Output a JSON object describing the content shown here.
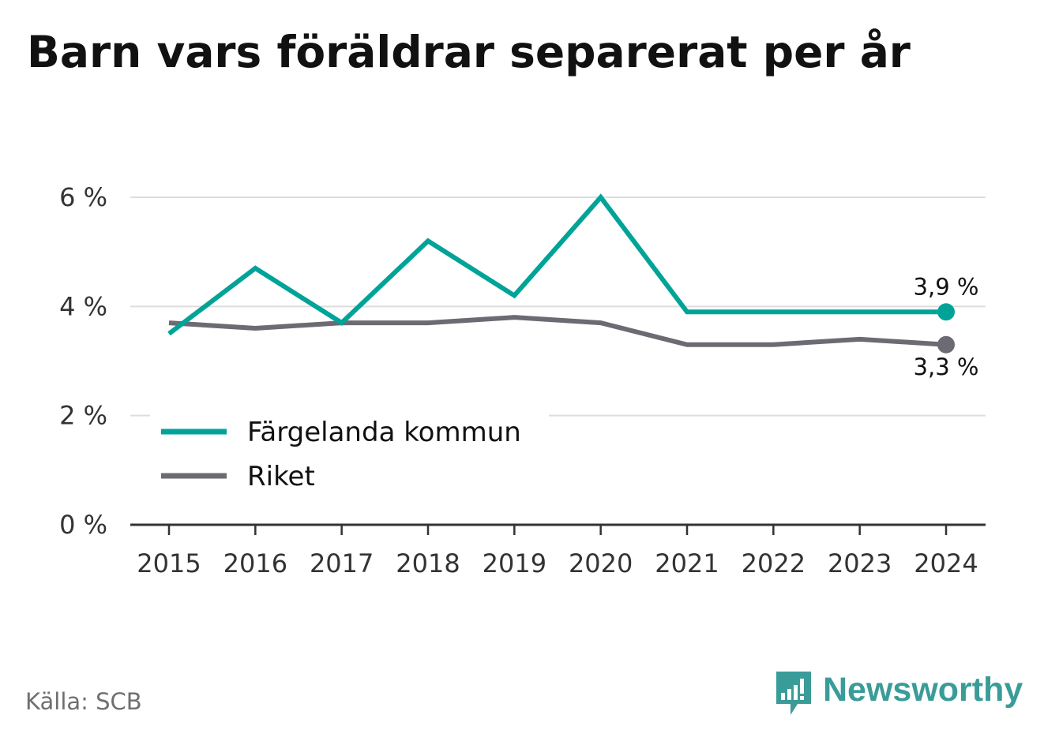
{
  "title": "Barn vars föräldrar separerat per år",
  "source": "Källa: SCB",
  "brand": {
    "name": "Newsworthy",
    "color": "#3a9c98"
  },
  "colors": {
    "primary_series": "#00a398",
    "secondary_series": "#6c6a72",
    "grid": "#dddddd",
    "axis": "#333333"
  },
  "chart_data": {
    "type": "line",
    "title": "Barn vars föräldrar separerat per år",
    "xlabel": "",
    "ylabel": "",
    "categories": [
      "2015",
      "2016",
      "2017",
      "2018",
      "2019",
      "2020",
      "2021",
      "2022",
      "2023",
      "2024"
    ],
    "y_ticks": [
      {
        "value": 0,
        "label": "0 %"
      },
      {
        "value": 2,
        "label": "2 %"
      },
      {
        "value": 4,
        "label": "4 %"
      },
      {
        "value": 6,
        "label": "6 %"
      }
    ],
    "ylim": [
      0,
      6
    ],
    "grid": true,
    "legend_position": "bottom-left",
    "series": [
      {
        "name": "Färgelanda kommun",
        "color": "#00a398",
        "values": [
          3.5,
          4.7,
          3.7,
          5.2,
          4.2,
          6.0,
          3.9,
          3.9,
          3.9,
          3.9
        ],
        "end_label": "3,9 %"
      },
      {
        "name": "Riket",
        "color": "#6c6a72",
        "values": [
          3.7,
          3.6,
          3.7,
          3.7,
          3.8,
          3.7,
          3.3,
          3.3,
          3.4,
          3.3
        ],
        "end_label": "3,3 %"
      }
    ]
  }
}
